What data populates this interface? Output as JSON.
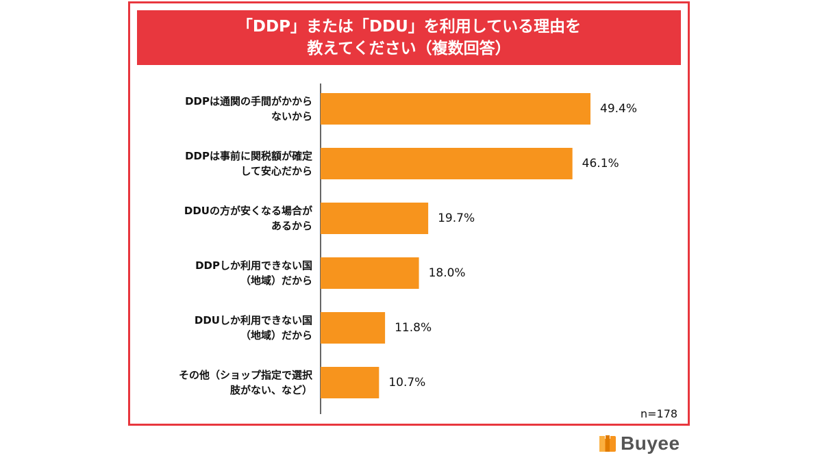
{
  "title": {
    "line1": "「DDP」または「DDU」を利用している理由を",
    "line2": "教えてください（複数回答）"
  },
  "chart_data": {
    "type": "bar",
    "orientation": "horizontal",
    "title": "「DDP」または「DDU」を利用している理由を教えてください（複数回答）",
    "categories": [
      [
        "DDPは通関の手間がかから",
        "ないから"
      ],
      [
        "DDPは事前に関税額が確定",
        "して安心だから"
      ],
      [
        "DDUの方が安くなる場合が",
        "あるから"
      ],
      [
        "DDPしか利用できない国",
        "（地域）だから"
      ],
      [
        "DDUしか利用できない国",
        "（地域）だから"
      ],
      [
        "その他（ショップ指定で選択",
        "肢がない、など）"
      ]
    ],
    "values": [
      49.4,
      46.1,
      19.7,
      18.0,
      11.8,
      10.7
    ],
    "value_labels": [
      "49.4%",
      "46.1%",
      "19.7%",
      "18.0%",
      "11.8%",
      "10.7%"
    ],
    "unit": "%",
    "xlim": [
      0,
      60
    ],
    "bar_color": "#f7941d",
    "sample_note": "n=178"
  },
  "colors": {
    "accent": "#e8373e",
    "bar": "#f7941d",
    "logo_orange": "#f7941d"
  },
  "logo": {
    "text": "Buyee",
    "icon": "buyee-box-icon"
  }
}
